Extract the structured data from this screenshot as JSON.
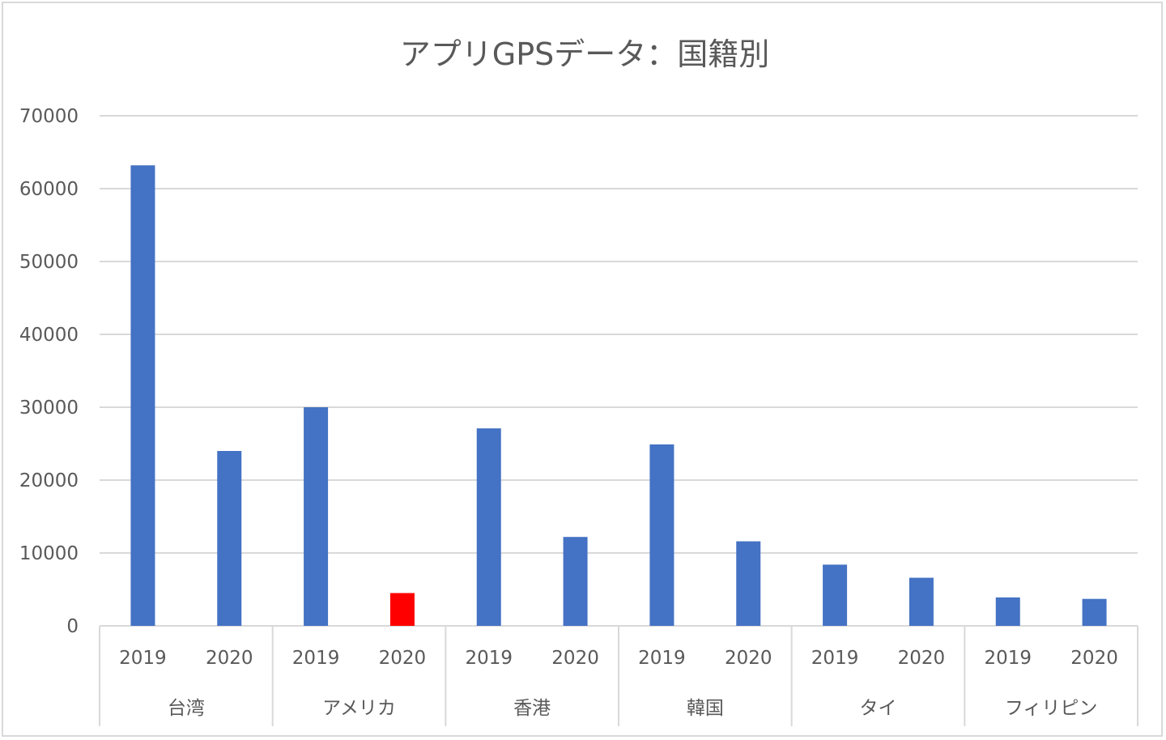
{
  "chart_data": {
    "type": "bar",
    "title": "アプリGPSデータ：国籍別",
    "xlabel": "",
    "ylabel": "",
    "ylim": [
      0,
      70000
    ],
    "yticks": [
      0,
      10000,
      20000,
      30000,
      40000,
      50000,
      60000,
      70000
    ],
    "grid": true,
    "legend": "none",
    "groups": [
      {
        "name": "台湾",
        "categories": [
          "2019",
          "2020"
        ],
        "values": [
          63200,
          24000
        ]
      },
      {
        "name": "アメリカ",
        "categories": [
          "2019",
          "2020"
        ],
        "values": [
          30000,
          4500
        ]
      },
      {
        "name": "香港",
        "categories": [
          "2019",
          "2020"
        ],
        "values": [
          27100,
          12200
        ]
      },
      {
        "name": "韓国",
        "categories": [
          "2019",
          "2020"
        ],
        "values": [
          24900,
          11600
        ]
      },
      {
        "name": "タイ",
        "categories": [
          "2019",
          "2020"
        ],
        "values": [
          8400,
          6600
        ]
      },
      {
        "name": "フィリピン",
        "categories": [
          "2019",
          "2020"
        ],
        "values": [
          3900,
          3700
        ]
      }
    ],
    "highlight": {
      "group": "アメリカ",
      "category": "2020"
    },
    "colors": {
      "bar": "#4472C4",
      "highlight": "#FF0000",
      "grid": "#d9d9d9",
      "text": "#595959"
    }
  }
}
